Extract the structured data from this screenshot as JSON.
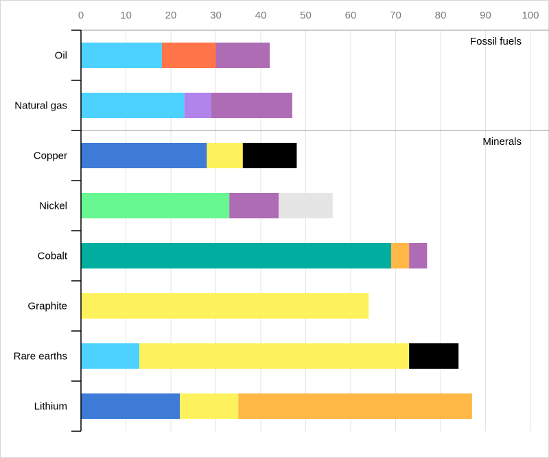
{
  "chart_data": {
    "type": "bar",
    "orientation": "horizontal",
    "stacked": true,
    "title": "",
    "xlabel": "",
    "ylabel": "",
    "xlim": [
      0,
      100
    ],
    "x_ticks": [
      0,
      10,
      20,
      30,
      40,
      50,
      60,
      70,
      80,
      90,
      100
    ],
    "x_tick_labels": [
      "0",
      "10",
      "20",
      "30",
      "40",
      "50",
      "60",
      "70",
      "80",
      "90",
      "100"
    ],
    "x_axis_position": "top",
    "grid": true,
    "legend": "none",
    "categories": [
      "Oil",
      "Natural gas",
      "Copper",
      "Nickel",
      "Cobalt",
      "Graphite",
      "Rare earths",
      "Lithium"
    ],
    "groups": [
      {
        "label": "Fossil fuels",
        "categories": [
          "Oil",
          "Natural gas"
        ]
      },
      {
        "label": "Minerals",
        "categories": [
          "Copper",
          "Nickel",
          "Cobalt",
          "Graphite",
          "Rare earths",
          "Lithium"
        ]
      }
    ],
    "segments": [
      [
        {
          "value": 18,
          "color": "#4dd2ff"
        },
        {
          "value": 12,
          "color": "#ff7448"
        },
        {
          "value": 12,
          "color": "#ae6cb4"
        }
      ],
      [
        {
          "value": 23,
          "color": "#4dd2ff"
        },
        {
          "value": 6,
          "color": "#b184ec"
        },
        {
          "value": 18,
          "color": "#ae6cb4"
        }
      ],
      [
        {
          "value": 28,
          "color": "#3d7bd6"
        },
        {
          "value": 8,
          "color": "#fdf25b"
        },
        {
          "value": 12,
          "color": "#000000"
        }
      ],
      [
        {
          "value": 33,
          "color": "#67f790"
        },
        {
          "value": 11,
          "color": "#ae6cb4"
        },
        {
          "value": 12,
          "color": "#e5e5e5"
        }
      ],
      [
        {
          "value": 69,
          "color": "#00ad9f"
        },
        {
          "value": 4,
          "color": "#ffb746"
        },
        {
          "value": 4,
          "color": "#ae6cb4"
        }
      ],
      [
        {
          "value": 64,
          "color": "#fdf25b"
        }
      ],
      [
        {
          "value": 13,
          "color": "#4dd2ff"
        },
        {
          "value": 60,
          "color": "#fdf25b"
        },
        {
          "value": 11,
          "color": "#000000"
        }
      ],
      [
        {
          "value": 22,
          "color": "#3d7bd6"
        },
        {
          "value": 13,
          "color": "#fdf25b"
        },
        {
          "value": 52,
          "color": "#ffb746"
        }
      ]
    ]
  }
}
